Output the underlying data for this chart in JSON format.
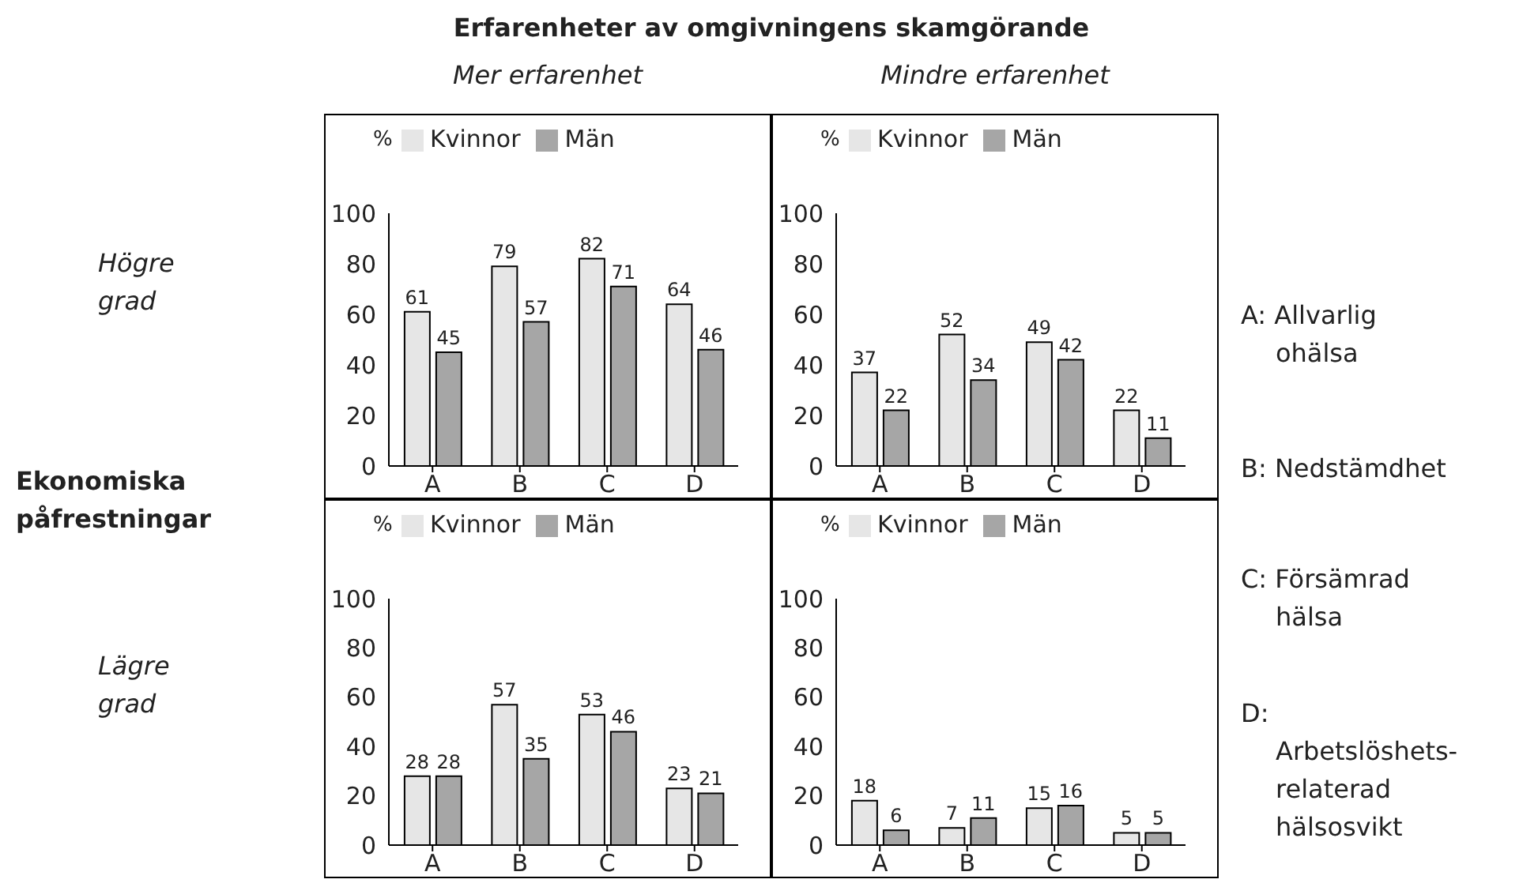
{
  "chart_data": [
    {
      "type": "bar",
      "title": "Erfarenheter av omgivningens skamgörande",
      "subtitle": "Mer erfarenhet",
      "annotations": [
        "Högre grad",
        "Ekonomiska påfrestningar"
      ],
      "ylabel": "%",
      "categories": [
        "A",
        "B",
        "C",
        "D"
      ],
      "series": [
        {
          "name": "Kvinnor",
          "color": "#e6e6e6",
          "values": [
            61,
            79,
            82,
            64
          ]
        },
        {
          "name": "Män",
          "color": "#a6a6a6",
          "values": [
            45,
            57,
            71,
            46
          ]
        }
      ],
      "ylim": [
        0,
        100
      ],
      "yticks": [
        0,
        20,
        40,
        60,
        80,
        100
      ],
      "data_labels": true,
      "legend": "top",
      "grid": false
    },
    {
      "type": "bar",
      "subtitle": "Mindre erfarenhet",
      "annotations": [
        "A: Allvarlig ohälsa",
        "B: Nedstämdhet",
        "C: Försämrad hälsa",
        "D: Arbetslöshets-relaterad hälsosvikt"
      ],
      "ylabel": "%",
      "categories": [
        "A",
        "B",
        "C",
        "D"
      ],
      "series": [
        {
          "name": "Kvinnor",
          "color": "#e6e6e6",
          "values": [
            37,
            52,
            49,
            22
          ]
        },
        {
          "name": "Män",
          "color": "#a6a6a6",
          "values": [
            22,
            34,
            42,
            11
          ]
        }
      ],
      "ylim": [
        0,
        100
      ],
      "yticks": [
        0,
        20,
        40,
        60,
        80,
        100
      ],
      "data_labels": true,
      "legend": "top",
      "grid": false
    },
    {
      "type": "bar",
      "annotations": [
        "Lägre grad"
      ],
      "ylabel": "%",
      "categories": [
        "A",
        "B",
        "C",
        "D"
      ],
      "series": [
        {
          "name": "Kvinnor",
          "color": "#e6e6e6",
          "values": [
            28,
            57,
            53,
            23
          ]
        },
        {
          "name": "Män",
          "color": "#a6a6a6",
          "values": [
            28,
            35,
            46,
            21
          ]
        }
      ],
      "ylim": [
        0,
        100
      ],
      "yticks": [
        0,
        20,
        40,
        60,
        80,
        100
      ],
      "data_labels": true,
      "legend": "top",
      "grid": false
    },
    {
      "type": "bar",
      "ylabel": "%",
      "categories": [
        "A",
        "B",
        "C",
        "D"
      ],
      "series": [
        {
          "name": "Kvinnor",
          "color": "#e6e6e6",
          "values": [
            18,
            7,
            15,
            5
          ]
        },
        {
          "name": "Män",
          "color": "#a6a6a6",
          "values": [
            6,
            11,
            16,
            5
          ]
        }
      ],
      "ylim": [
        0,
        100
      ],
      "yticks": [
        0,
        20,
        40,
        60,
        80,
        100
      ],
      "data_labels": true,
      "legend": "top",
      "grid": false
    }
  ]
}
